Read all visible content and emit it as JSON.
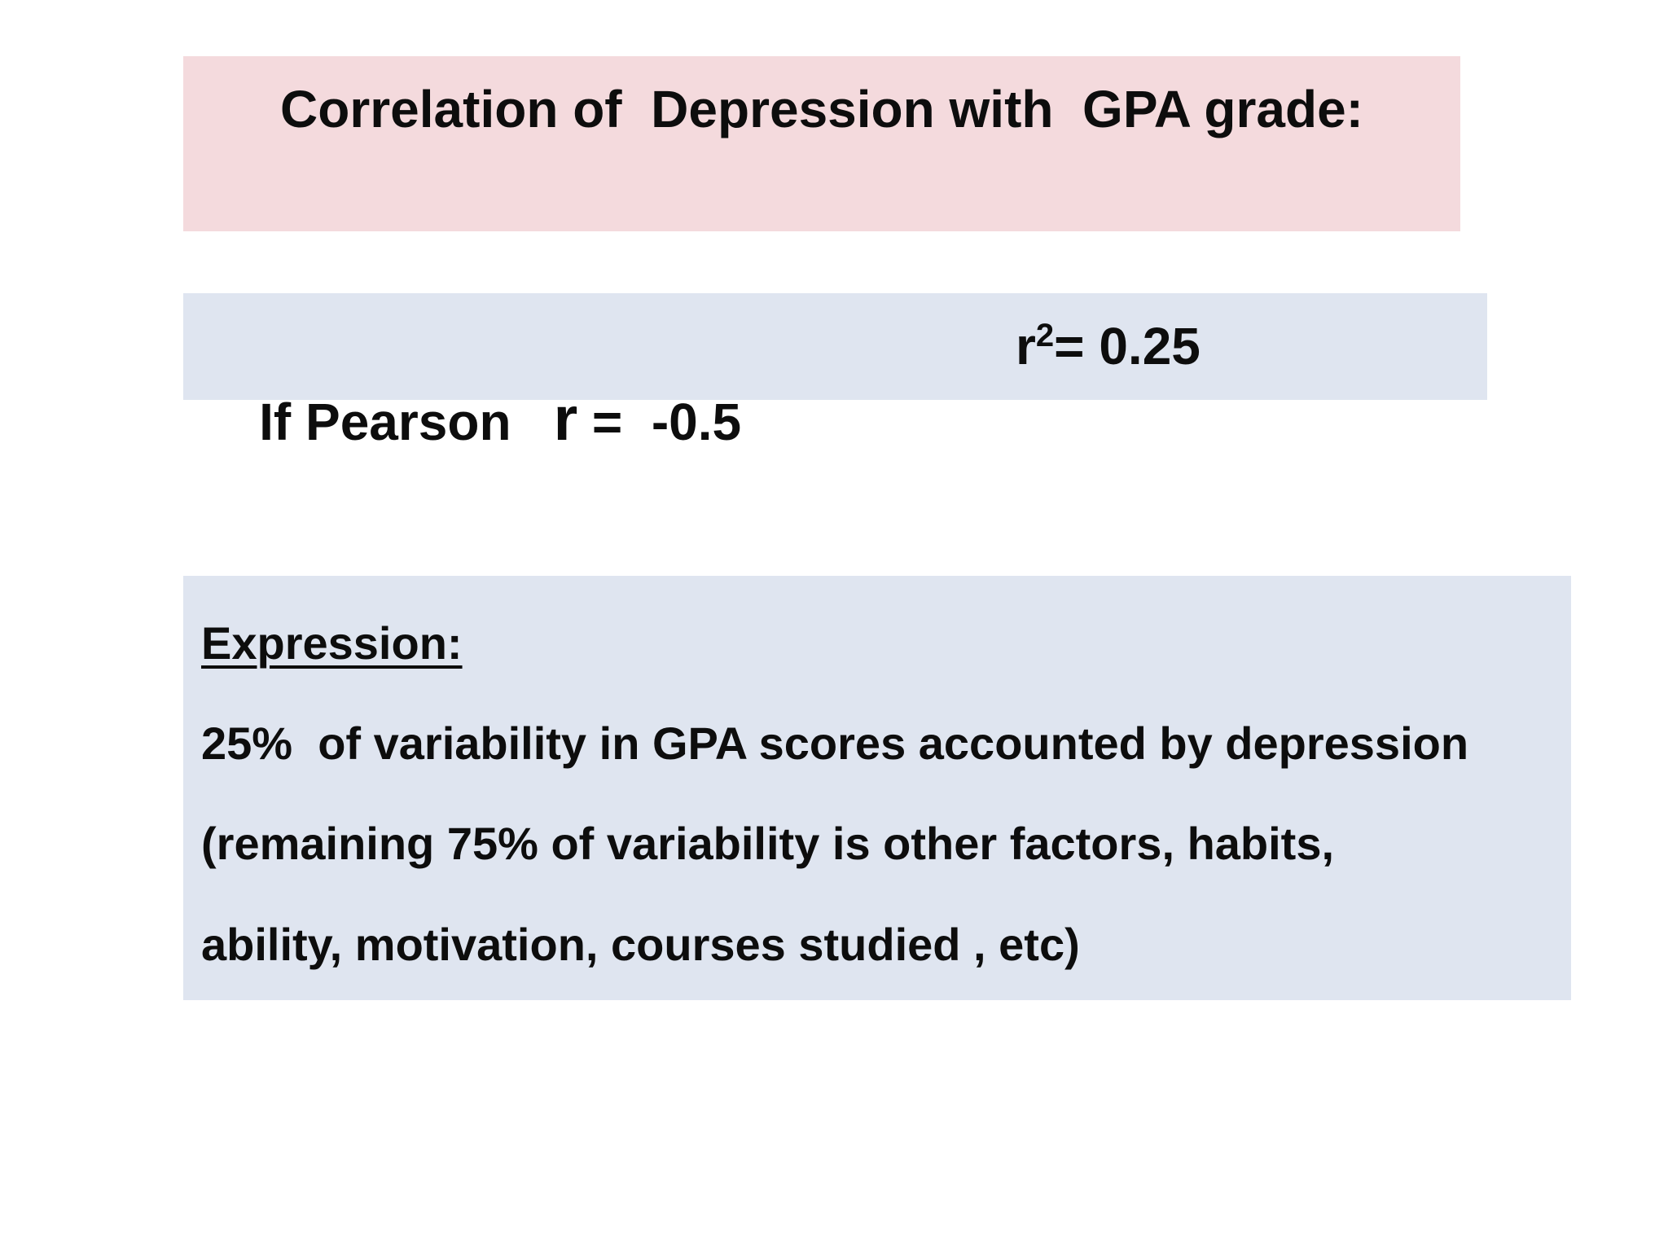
{
  "title": "Correlation of  Depression with  GPA grade:",
  "pearson": {
    "label": "If Pearson",
    "r_letter": "r",
    "r_rest": " =  -0.5",
    "r2_base": "r",
    "r2_exp": "2",
    "r2_value": "= 0.25"
  },
  "expression": {
    "heading": "Expression:",
    "lines": [
      "25%  of variability in GPA scores accounted by depression",
      "(remaining 75% of variability is other factors, habits,",
      "ability, motivation, courses studied , etc)"
    ]
  },
  "colors": {
    "title_box": "#f4dadd",
    "content_box": "#dfe5f0"
  }
}
